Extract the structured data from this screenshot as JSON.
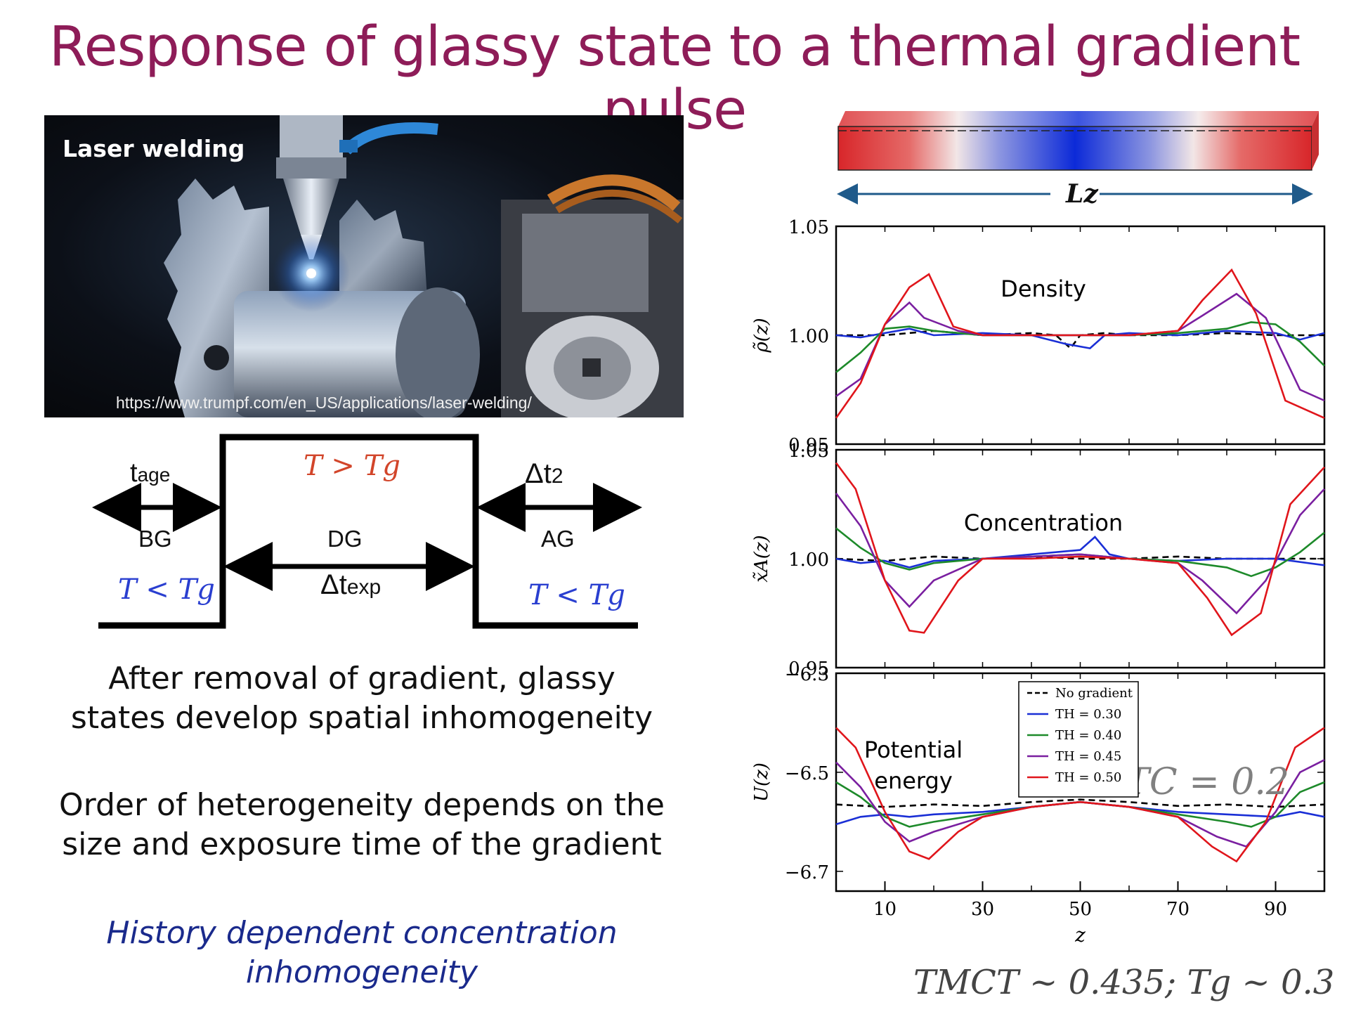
{
  "slide": {
    "title": "Response of glassy state to a thermal gradient pulse"
  },
  "photo": {
    "label": "Laser welding",
    "url": "https://www.trumpf.com/en_US/applications/laser-welding/"
  },
  "pulse_diagram": {
    "t_age": "t",
    "t_age_sub": "age",
    "dt2": "Δt",
    "dt2_sub": "2",
    "dtexp": "Δt",
    "dtexp_sub": "exp",
    "bg": "BG",
    "dg": "DG",
    "ag": "AG",
    "hot_condition": "T > Tg",
    "cold_condition_left": "T < Tg",
    "cold_condition_right": "T < Tg",
    "hot_color": "#d2452a",
    "cold_color": "#2a3fd0"
  },
  "text": {
    "para1_line1": "After removal of gradient, glassy",
    "para1_line2": "states develop spatial inhomogeneity",
    "para2_line1": "Order of heterogeneity depends on the",
    "para2_line2": "size and exposure time of the gradient",
    "italic_line1": "History dependent concentration",
    "italic_line2": "inhomogeneity",
    "italic_color": "#1a2a8c"
  },
  "sim_box": {
    "axis_label": "Lz",
    "arrow_color": "#1f5a8a"
  },
  "chart_data": [
    {
      "type": "line",
      "title": "Density",
      "ylabel": "ρ̃(z)",
      "ylim": [
        0.95,
        1.05
      ],
      "yticks": [
        "1.05",
        "1.00",
        "0.95"
      ],
      "xlim": [
        0,
        100
      ],
      "series": [
        {
          "name": "No gradient",
          "color": "#000000",
          "dash": true,
          "x": [
            0,
            10,
            20,
            30,
            40,
            45,
            48,
            50,
            55,
            60,
            70,
            80,
            90,
            100
          ],
          "y": [
            1.0,
            1.0,
            1.002,
            1.0,
            1.001,
            1.0,
            0.994,
            1.0,
            1.001,
            1.0,
            1.0,
            1.001,
            1.0,
            1.0
          ]
        },
        {
          "name": "TH = 0.30",
          "color": "#1a2fd6",
          "x": [
            0,
            5,
            10,
            15,
            20,
            30,
            40,
            47,
            52,
            55,
            60,
            70,
            80,
            90,
            95,
            100
          ],
          "y": [
            1.0,
            0.999,
            1.001,
            1.003,
            1.0,
            1.001,
            1.0,
            0.996,
            0.994,
            1.0,
            1.001,
            1.0,
            1.002,
            1.001,
            0.998,
            1.001
          ]
        },
        {
          "name": "TH = 0.40",
          "color": "#1d8a2a",
          "x": [
            0,
            5,
            10,
            15,
            20,
            30,
            40,
            50,
            60,
            70,
            80,
            85,
            90,
            95,
            100
          ],
          "y": [
            0.983,
            0.992,
            1.003,
            1.004,
            1.002,
            1.0,
            1.0,
            1.0,
            1.0,
            1.001,
            1.003,
            1.006,
            1.005,
            0.997,
            0.986
          ]
        },
        {
          "name": "TH = 0.45",
          "color": "#7a1fa0",
          "x": [
            0,
            5,
            10,
            15,
            18,
            25,
            30,
            40,
            50,
            60,
            70,
            75,
            82,
            88,
            95,
            100
          ],
          "y": [
            0.972,
            0.98,
            1.005,
            1.015,
            1.008,
            1.002,
            1.0,
            1.0,
            1.0,
            1.0,
            1.002,
            1.009,
            1.019,
            1.008,
            0.975,
            0.97
          ]
        },
        {
          "name": "TH = 0.50",
          "color": "#e0151b",
          "x": [
            0,
            5,
            10,
            15,
            19,
            24,
            30,
            40,
            50,
            60,
            70,
            75,
            81,
            86,
            92,
            100
          ],
          "y": [
            0.962,
            0.978,
            1.005,
            1.022,
            1.028,
            1.004,
            1.0,
            1.0,
            1.0,
            1.0,
            1.002,
            1.016,
            1.03,
            1.01,
            0.97,
            0.962
          ]
        }
      ]
    },
    {
      "type": "line",
      "title": "Concentration",
      "ylabel": "x̃A(z)",
      "ylim": [
        0.95,
        1.05
      ],
      "yticks": [
        "1.05",
        "1.00",
        "0.95"
      ],
      "xlim": [
        0,
        100
      ],
      "series": [
        {
          "name": "No gradient",
          "color": "#000000",
          "dash": true,
          "x": [
            0,
            10,
            20,
            30,
            40,
            50,
            60,
            70,
            80,
            90,
            100
          ],
          "y": [
            1.0,
            0.999,
            1.001,
            1.0,
            1.001,
            1.0,
            1.0,
            1.001,
            1.0,
            1.0,
            1.0
          ]
        },
        {
          "name": "TH = 0.30",
          "color": "#1a2fd6",
          "x": [
            0,
            5,
            10,
            15,
            20,
            30,
            40,
            50,
            53,
            56,
            60,
            70,
            80,
            90,
            100
          ],
          "y": [
            1.0,
            0.998,
            0.999,
            0.996,
            0.999,
            1.0,
            1.002,
            1.004,
            1.01,
            1.002,
            1.0,
            0.999,
            1.0,
            1.0,
            0.997
          ]
        },
        {
          "name": "TH = 0.40",
          "color": "#1d8a2a",
          "x": [
            0,
            5,
            10,
            15,
            20,
            30,
            40,
            50,
            60,
            70,
            80,
            85,
            90,
            95,
            100
          ],
          "y": [
            1.014,
            1.005,
            0.998,
            0.995,
            0.998,
            1.0,
            1.001,
            1.002,
            1.0,
            0.999,
            0.996,
            0.992,
            0.996,
            1.003,
            1.012
          ]
        },
        {
          "name": "TH = 0.45",
          "color": "#7a1fa0",
          "x": [
            0,
            5,
            10,
            15,
            20,
            30,
            40,
            50,
            60,
            70,
            75,
            82,
            88,
            95,
            100
          ],
          "y": [
            1.03,
            1.015,
            0.99,
            0.978,
            0.99,
            1.0,
            1.001,
            1.002,
            1.0,
            0.998,
            0.99,
            0.975,
            0.99,
            1.02,
            1.032
          ]
        },
        {
          "name": "TH = 0.50",
          "color": "#e0151b",
          "x": [
            0,
            4,
            10,
            15,
            18,
            25,
            30,
            40,
            50,
            60,
            70,
            76,
            81,
            87,
            93,
            100
          ],
          "y": [
            1.044,
            1.032,
            0.99,
            0.967,
            0.966,
            0.99,
            1.0,
            1.0,
            1.001,
            1.0,
            0.998,
            0.982,
            0.965,
            0.975,
            1.025,
            1.042
          ]
        }
      ]
    },
    {
      "type": "line",
      "title": "Potential energy",
      "ylabel": "U(z)",
      "ylim": [
        -6.74,
        -6.3
      ],
      "yticks": [
        "−6.3",
        "−6.5",
        "−6.7"
      ],
      "xlabel": "z",
      "xlim": [
        0,
        100
      ],
      "xticks": [
        "10",
        "30",
        "50",
        "70",
        "90"
      ],
      "xtick_values": [
        10,
        30,
        50,
        70,
        90
      ],
      "annotation": "TC = 0.2",
      "legend": "top-center",
      "series": [
        {
          "name": "No gradient",
          "color": "#000000",
          "dash": true,
          "x": [
            0,
            10,
            20,
            30,
            40,
            50,
            60,
            70,
            80,
            90,
            100
          ],
          "y": [
            -6.565,
            -6.57,
            -6.565,
            -6.568,
            -6.56,
            -6.555,
            -6.56,
            -6.568,
            -6.565,
            -6.57,
            -6.565
          ]
        },
        {
          "name": "TH = 0.30",
          "color": "#1a2fd6",
          "x": [
            0,
            5,
            10,
            15,
            20,
            30,
            40,
            50,
            60,
            70,
            80,
            90,
            95,
            100
          ],
          "y": [
            -6.605,
            -6.59,
            -6.585,
            -6.59,
            -6.585,
            -6.58,
            -6.57,
            -6.56,
            -6.57,
            -6.58,
            -6.585,
            -6.59,
            -6.58,
            -6.59
          ]
        },
        {
          "name": "TH = 0.40",
          "color": "#1d8a2a",
          "x": [
            0,
            5,
            10,
            15,
            20,
            30,
            40,
            50,
            60,
            70,
            80,
            85,
            90,
            95,
            100
          ],
          "y": [
            -6.52,
            -6.55,
            -6.59,
            -6.61,
            -6.6,
            -6.585,
            -6.57,
            -6.56,
            -6.57,
            -6.585,
            -6.6,
            -6.61,
            -6.59,
            -6.54,
            -6.52
          ]
        },
        {
          "name": "TH = 0.45",
          "color": "#7a1fa0",
          "x": [
            0,
            5,
            10,
            15,
            20,
            30,
            40,
            50,
            60,
            70,
            78,
            84,
            90,
            95,
            100
          ],
          "y": [
            -6.48,
            -6.53,
            -6.6,
            -6.64,
            -6.62,
            -6.59,
            -6.57,
            -6.56,
            -6.57,
            -6.59,
            -6.63,
            -6.65,
            -6.58,
            -6.5,
            -6.475
          ]
        },
        {
          "name": "TH = 0.50",
          "color": "#e0151b",
          "x": [
            0,
            4,
            10,
            15,
            19,
            25,
            30,
            40,
            50,
            60,
            70,
            77,
            82,
            88,
            94,
            100
          ],
          "y": [
            -6.41,
            -6.45,
            -6.58,
            -6.66,
            -6.675,
            -6.62,
            -6.59,
            -6.57,
            -6.56,
            -6.57,
            -6.59,
            -6.65,
            -6.68,
            -6.6,
            -6.45,
            -6.41
          ]
        }
      ]
    }
  ],
  "footer": {
    "relation": "TMCT ~ 0.435; Tg ~ 0.3"
  }
}
